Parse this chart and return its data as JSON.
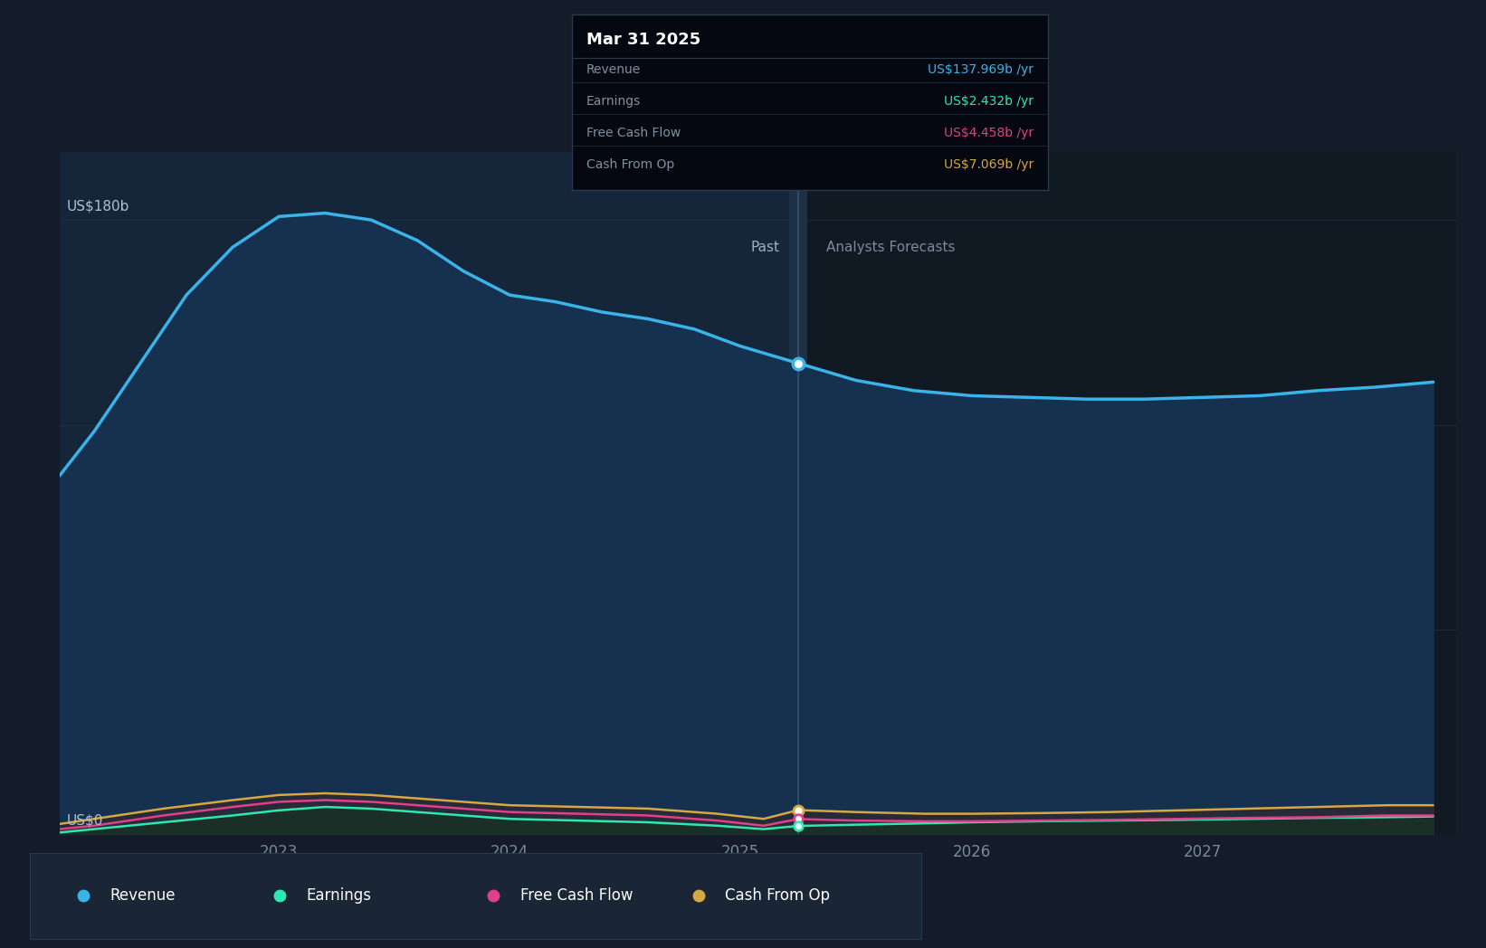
{
  "bg_color": "#131c28",
  "plot_bg_outer": "#131c28",
  "past_shade_color": "#16263a",
  "forecast_bg": "#111922",
  "divider_band_color": "#1e3045",
  "grid_color": "#1e3045",
  "revenue_color": "#3ab4e8",
  "earnings_color": "#2de8b0",
  "fcf_color": "#e0408a",
  "cashop_color": "#d4a843",
  "revenue_fill_past": "#163050",
  "revenue_fill_forecast": "#101e30",
  "gray_fill": "#2a2a35",
  "earnings_fill": "#162a22",
  "past_label": "Past",
  "forecast_label": "Analysts Forecasts",
  "y_label_180": "US$180b",
  "y_label_0": "US$0",
  "tooltip_title": "Mar 31 2025",
  "tooltip_bg": "#050810",
  "tooltip_border": "#2a3a4a",
  "tooltip_rows": [
    {
      "label": "Revenue",
      "value": "US$137.969b /yr",
      "color": "#3ab4e8"
    },
    {
      "label": "Earnings",
      "value": "US$2.432b /yr",
      "color": "#2de8b0"
    },
    {
      "label": "Free Cash Flow",
      "value": "US$4.458b /yr",
      "color": "#e0408a"
    },
    {
      "label": "Cash From Op",
      "value": "US$7.069b /yr",
      "color": "#d4a843"
    }
  ],
  "legend_items": [
    {
      "label": "Revenue",
      "color": "#3ab4e8"
    },
    {
      "label": "Earnings",
      "color": "#2de8b0"
    },
    {
      "label": "Free Cash Flow",
      "color": "#e0408a"
    },
    {
      "label": "Cash From Op",
      "color": "#d4a843"
    }
  ],
  "ylim": [
    0,
    200
  ],
  "xlim": [
    2022.05,
    2028.1
  ],
  "divider_x": 2025.25,
  "revenue_x": [
    2022.05,
    2022.2,
    2022.4,
    2022.6,
    2022.8,
    2023.0,
    2023.2,
    2023.4,
    2023.6,
    2023.8,
    2024.0,
    2024.2,
    2024.4,
    2024.6,
    2024.8,
    2025.0,
    2025.25,
    2025.5,
    2025.75,
    2026.0,
    2026.25,
    2026.5,
    2026.75,
    2027.0,
    2027.25,
    2027.5,
    2027.75,
    2028.0
  ],
  "revenue_y": [
    105,
    118,
    138,
    158,
    172,
    181,
    182,
    180,
    174,
    165,
    158,
    156,
    153,
    151,
    148,
    143,
    138,
    133,
    130,
    128.5,
    128,
    127.5,
    127.5,
    128,
    128.5,
    130,
    131,
    132.5
  ],
  "cashop_x": [
    2022.05,
    2022.2,
    2022.5,
    2022.8,
    2023.0,
    2023.2,
    2023.4,
    2023.6,
    2023.8,
    2024.0,
    2024.3,
    2024.6,
    2024.9,
    2025.1,
    2025.25,
    2025.5,
    2025.8,
    2026.0,
    2026.3,
    2026.6,
    2026.9,
    2027.2,
    2027.5,
    2027.8,
    2028.0
  ],
  "cashop_y": [
    3.0,
    4.5,
    7.5,
    10.0,
    11.5,
    12.0,
    11.5,
    10.5,
    9.5,
    8.5,
    8.0,
    7.5,
    6.0,
    4.5,
    7.069,
    6.5,
    6.0,
    6.0,
    6.2,
    6.5,
    7.0,
    7.5,
    8.0,
    8.5,
    8.5
  ],
  "fcf_x": [
    2022.05,
    2022.2,
    2022.5,
    2022.8,
    2023.0,
    2023.2,
    2023.4,
    2023.6,
    2023.8,
    2024.0,
    2024.3,
    2024.6,
    2024.9,
    2025.1,
    2025.25,
    2025.5,
    2025.8,
    2026.0,
    2026.3,
    2026.6,
    2026.9,
    2027.2,
    2027.5,
    2027.8,
    2028.0
  ],
  "fcf_y": [
    1.5,
    2.5,
    5.5,
    8.0,
    9.5,
    10.0,
    9.5,
    8.5,
    7.5,
    6.5,
    6.0,
    5.5,
    4.0,
    2.5,
    4.458,
    4.0,
    3.8,
    3.8,
    4.0,
    4.2,
    4.5,
    4.8,
    5.0,
    5.5,
    5.5
  ],
  "earnings_x": [
    2022.05,
    2022.2,
    2022.5,
    2022.8,
    2023.0,
    2023.2,
    2023.4,
    2023.6,
    2023.8,
    2024.0,
    2024.3,
    2024.6,
    2024.9,
    2025.1,
    2025.25,
    2025.5,
    2025.8,
    2026.0,
    2026.3,
    2026.6,
    2026.9,
    2027.2,
    2027.5,
    2027.8,
    2028.0
  ],
  "earnings_y": [
    0.5,
    1.5,
    3.5,
    5.5,
    7.0,
    8.0,
    7.5,
    6.5,
    5.5,
    4.5,
    4.0,
    3.5,
    2.5,
    1.5,
    2.432,
    2.8,
    3.2,
    3.5,
    3.8,
    4.0,
    4.2,
    4.5,
    4.8,
    5.0,
    5.2
  ]
}
